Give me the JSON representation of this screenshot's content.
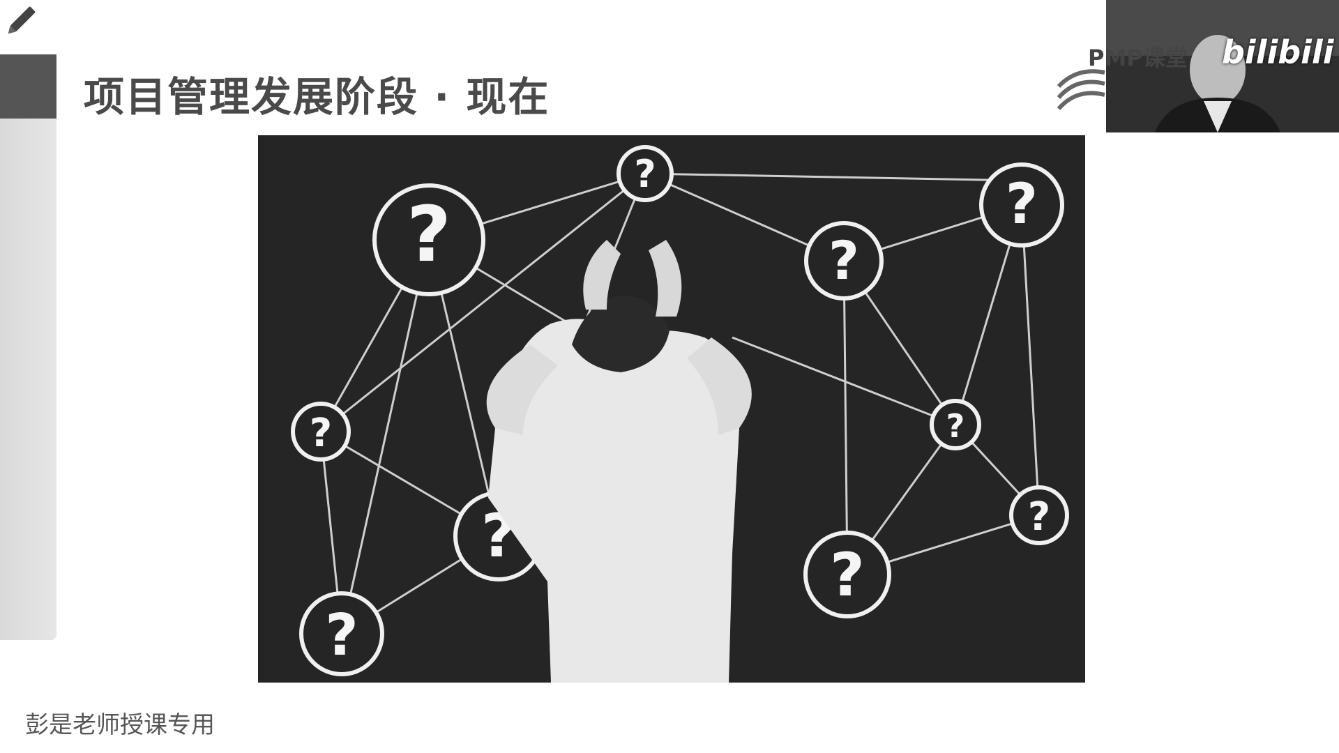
{
  "slide": {
    "title": "项目管理发展阶段 · 现在",
    "footer_text": "彭是老师授课专用"
  },
  "overlay": {
    "brand": "PMP课堂",
    "platform_logo": "bilibili"
  },
  "image": {
    "description_icon": "question-network-illustration"
  },
  "colors": {
    "title": "#4a4a4a",
    "side_panel_dark": "#555555",
    "side_panel_light": "#dddddd",
    "photo_background": "#252525"
  }
}
